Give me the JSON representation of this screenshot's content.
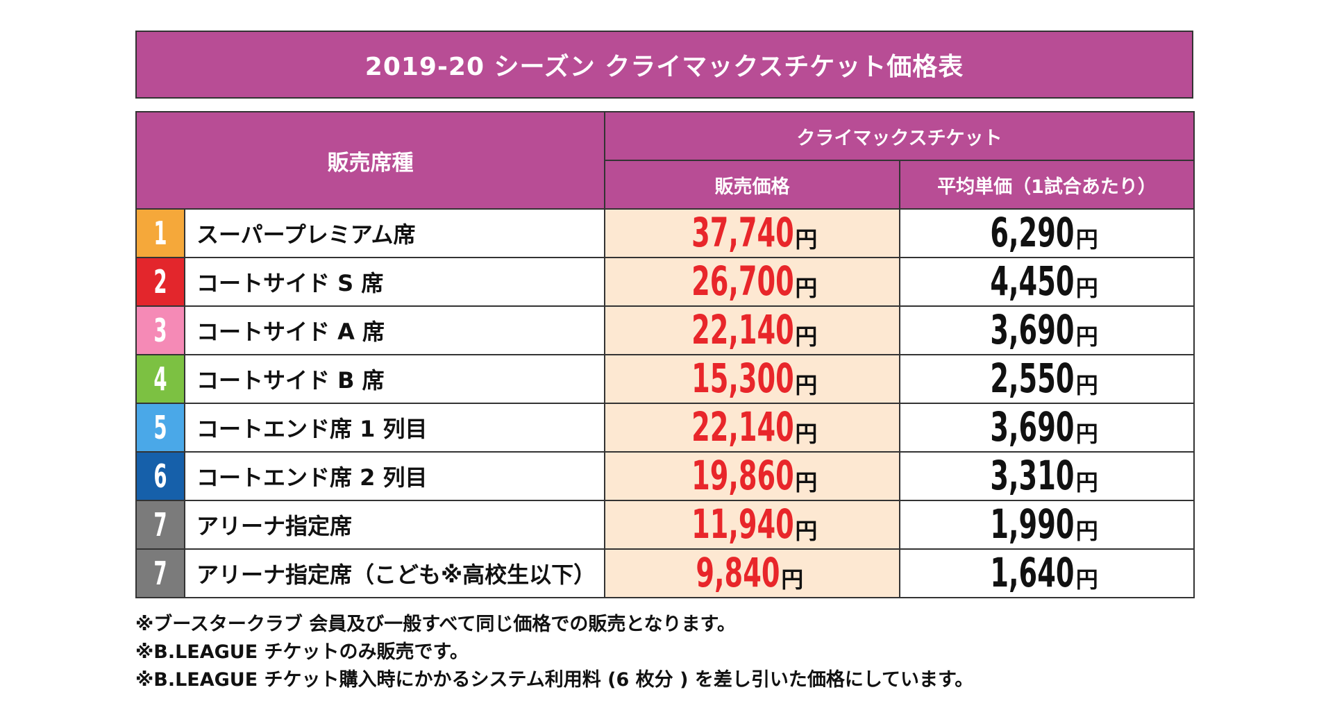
{
  "title": "2019-20 シーズン クライマックスチケット価格表",
  "colors": {
    "header_purple": "#b84d95",
    "price_bg": "#fde8d2",
    "price_red": "#e8262a",
    "avg_black": "#111111"
  },
  "table": {
    "header_seat_type": "販売席種",
    "header_group": "クライマックスチケット",
    "header_price": "販売価格",
    "header_avg": "平均単価（1試合あたり）",
    "yen": "円",
    "rows": [
      {
        "num": "1",
        "color": "#f5a83a",
        "name": "スーパープレミアム席",
        "price": "37,740",
        "avg": "6,290"
      },
      {
        "num": "2",
        "color": "#e3262c",
        "name": "コートサイド S 席",
        "price": "26,700",
        "avg": "4,450"
      },
      {
        "num": "3",
        "color": "#f58ab6",
        "name": "コートサイド A 席",
        "price": "22,140",
        "avg": "3,690"
      },
      {
        "num": "4",
        "color": "#7cc142",
        "name": "コートサイド B 席",
        "price": "15,300",
        "avg": "2,550"
      },
      {
        "num": "5",
        "color": "#4aa8e8",
        "name": "コートエンド席 1 列目",
        "price": "22,140",
        "avg": "3,690"
      },
      {
        "num": "6",
        "color": "#1660aa",
        "name": "コートエンド席 2 列目",
        "price": "19,860",
        "avg": "3,310"
      },
      {
        "num": "7",
        "color": "#7b7b7b",
        "name": "アリーナ指定席",
        "price": "11,940",
        "avg": "1,990"
      },
      {
        "num": "7",
        "color": "#7b7b7b",
        "name": "アリーナ指定席（こども※高校生以下）",
        "price": "9,840",
        "avg": "1,640"
      }
    ]
  },
  "notes": [
    "※ブースタークラブ 会員及び一般すべて同じ価格での販売となります。",
    "※B.LEAGUE チケットのみ販売です。",
    "※B.LEAGUE チケット購入時にかかるシステム利用料 (6 枚分 ) を差し引いた価格にしています。"
  ]
}
